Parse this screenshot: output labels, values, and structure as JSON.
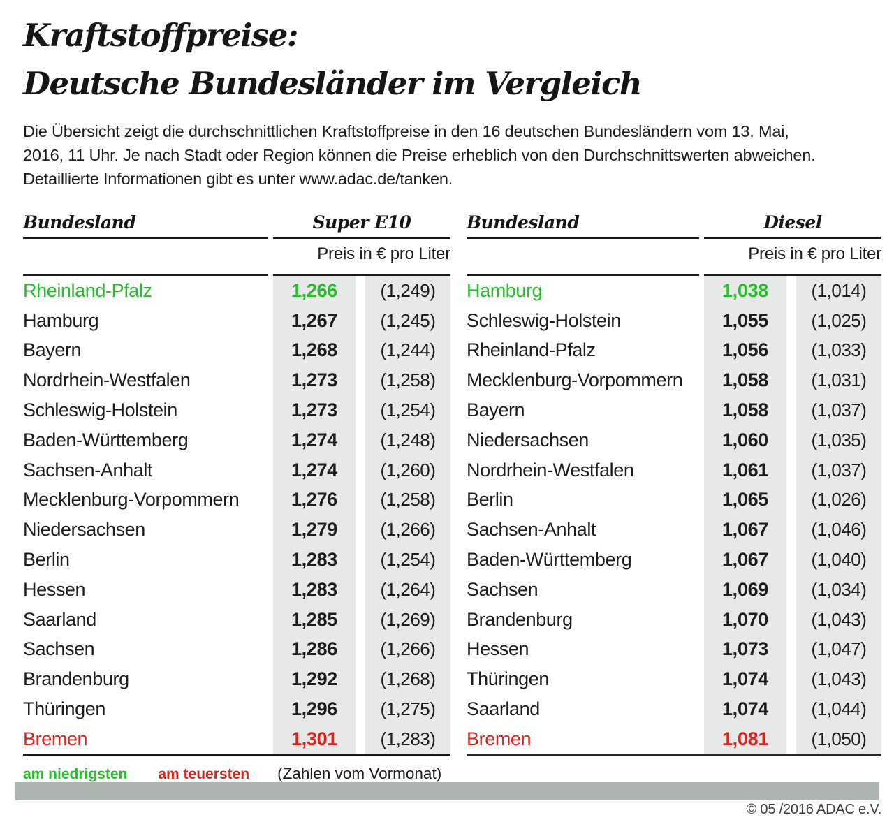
{
  "title": {
    "line1": "Kraftstoffpreise:",
    "line2": "Deutsche Bundesländer im Vergleich"
  },
  "intro_lines": [
    "Die Übersicht zeigt die durchschnittlichen Kraftstoffpreise in den 16 deutschen Bundesländern vom 13. Mai,",
    "2016, 11 Uhr. Je nach Stadt oder Region können die Preise erheblich von den Durchschnittswerten abweichen.",
    "Detaillierte Informationen gibt es unter www.adac.de/tanken."
  ],
  "colors": {
    "green": "#25bf2a",
    "red": "#d9231d",
    "colbg": "#e6e9e7",
    "bar": "#aeb4b0"
  },
  "tables": [
    {
      "name_header": "Bundesland",
      "fuel_header": "Super E10",
      "unit_header": "Preis in € pro Liter",
      "rows": [
        {
          "state": "Rheinland-Pfalz",
          "price": "1,266",
          "prev": "(1,249)",
          "highlight": "lowest"
        },
        {
          "state": "Hamburg",
          "price": "1,267",
          "prev": "(1,245)"
        },
        {
          "state": "Bayern",
          "price": "1,268",
          "prev": "(1,244)"
        },
        {
          "state": "Nordrhein-Westfalen",
          "price": "1,273",
          "prev": "(1,258)"
        },
        {
          "state": "Schleswig-Holstein",
          "price": "1,273",
          "prev": "(1,254)"
        },
        {
          "state": "Baden-Württemberg",
          "price": "1,274",
          "prev": "(1,248)"
        },
        {
          "state": "Sachsen-Anhalt",
          "price": "1,274",
          "prev": "(1,260)"
        },
        {
          "state": "Mecklenburg-Vorpommern",
          "price": "1,276",
          "prev": "(1,258)"
        },
        {
          "state": "Niedersachsen",
          "price": "1,279",
          "prev": "(1,266)"
        },
        {
          "state": "Berlin",
          "price": "1,283",
          "prev": "(1,254)"
        },
        {
          "state": "Hessen",
          "price": "1,283",
          "prev": "(1,264)"
        },
        {
          "state": "Saarland",
          "price": "1,285",
          "prev": "(1,269)"
        },
        {
          "state": "Sachsen",
          "price": "1,286",
          "prev": "(1,266)"
        },
        {
          "state": "Brandenburg",
          "price": "1,292",
          "prev": "(1,268)"
        },
        {
          "state": "Thüringen",
          "price": "1,296",
          "prev": "(1,275)"
        },
        {
          "state": "Bremen",
          "price": "1,301",
          "prev": "(1,283)",
          "highlight": "highest"
        }
      ]
    },
    {
      "name_header": "Bundesland",
      "fuel_header": "Diesel",
      "unit_header": "Preis in € pro Liter",
      "rows": [
        {
          "state": "Hamburg",
          "price": "1,038",
          "prev": "(1,014)",
          "highlight": "lowest"
        },
        {
          "state": "Schleswig-Holstein",
          "price": "1,055",
          "prev": "(1,025)"
        },
        {
          "state": "Rheinland-Pfalz",
          "price": "1,056",
          "prev": "(1,033)"
        },
        {
          "state": "Mecklenburg-Vorpommern",
          "price": "1,058",
          "prev": "(1,031)"
        },
        {
          "state": "Bayern",
          "price": "1,058",
          "prev": "(1,037)"
        },
        {
          "state": "Niedersachsen",
          "price": "1,060",
          "prev": "(1,035)"
        },
        {
          "state": "Nordrhein-Westfalen",
          "price": "1,061",
          "prev": "(1,037)"
        },
        {
          "state": "Berlin",
          "price": "1,065",
          "prev": "(1,026)"
        },
        {
          "state": "Sachsen-Anhalt",
          "price": "1,067",
          "prev": "(1,046)"
        },
        {
          "state": "Baden-Württemberg",
          "price": "1,067",
          "prev": "(1,040)"
        },
        {
          "state": "Sachsen",
          "price": "1,069",
          "prev": "(1,034)"
        },
        {
          "state": "Brandenburg",
          "price": "1,070",
          "prev": "(1,043)"
        },
        {
          "state": "Hessen",
          "price": "1,073",
          "prev": "(1,047)"
        },
        {
          "state": "Thüringen",
          "price": "1,074",
          "prev": "(1,043)"
        },
        {
          "state": "Saarland",
          "price": "1,074",
          "prev": "(1,044)"
        },
        {
          "state": "Bremen",
          "price": "1,081",
          "prev": "(1,050)",
          "highlight": "highest"
        }
      ]
    }
  ],
  "legend": {
    "lowest": "am niedrigsten",
    "highest": "am teuersten",
    "note": "(Zahlen vom Vormonat)"
  },
  "copyright": "© 05 /2016 ADAC e.V.",
  "chart_data": [
    {
      "type": "table",
      "title": "Super E10",
      "subtitle": "Preis in € pro Liter",
      "columns": [
        "Bundesland",
        "Preis in € pro Liter",
        "Zahlen vom Vormonat"
      ],
      "rows": [
        [
          "Rheinland-Pfalz",
          1.266,
          1.249
        ],
        [
          "Hamburg",
          1.267,
          1.245
        ],
        [
          "Bayern",
          1.268,
          1.244
        ],
        [
          "Nordrhein-Westfalen",
          1.273,
          1.258
        ],
        [
          "Schleswig-Holstein",
          1.273,
          1.254
        ],
        [
          "Baden-Württemberg",
          1.274,
          1.248
        ],
        [
          "Sachsen-Anhalt",
          1.274,
          1.26
        ],
        [
          "Mecklenburg-Vorpommern",
          1.276,
          1.258
        ],
        [
          "Niedersachsen",
          1.279,
          1.266
        ],
        [
          "Berlin",
          1.283,
          1.254
        ],
        [
          "Hessen",
          1.283,
          1.264
        ],
        [
          "Saarland",
          1.285,
          1.269
        ],
        [
          "Sachsen",
          1.286,
          1.266
        ],
        [
          "Brandenburg",
          1.292,
          1.268
        ],
        [
          "Thüringen",
          1.296,
          1.275
        ],
        [
          "Bremen",
          1.301,
          1.283
        ]
      ],
      "annotations": {
        "lowest_green": "Rheinland-Pfalz 1,266",
        "highest_red": "Bremen 1,301"
      }
    },
    {
      "type": "table",
      "title": "Diesel",
      "subtitle": "Preis in € pro Liter",
      "columns": [
        "Bundesland",
        "Preis in € pro Liter",
        "Zahlen vom Vormonat"
      ],
      "rows": [
        [
          "Hamburg",
          1.038,
          1.014
        ],
        [
          "Schleswig-Holstein",
          1.055,
          1.025
        ],
        [
          "Rheinland-Pfalz",
          1.056,
          1.033
        ],
        [
          "Mecklenburg-Vorpommern",
          1.058,
          1.031
        ],
        [
          "Bayern",
          1.058,
          1.037
        ],
        [
          "Niedersachsen",
          1.06,
          1.035
        ],
        [
          "Nordrhein-Westfalen",
          1.061,
          1.037
        ],
        [
          "Berlin",
          1.065,
          1.026
        ],
        [
          "Sachsen-Anhalt",
          1.067,
          1.046
        ],
        [
          "Baden-Württemberg",
          1.067,
          1.04
        ],
        [
          "Sachsen",
          1.069,
          1.034
        ],
        [
          "Brandenburg",
          1.07,
          1.043
        ],
        [
          "Hessen",
          1.073,
          1.047
        ],
        [
          "Thüringen",
          1.074,
          1.043
        ],
        [
          "Saarland",
          1.074,
          1.044
        ],
        [
          "Bremen",
          1.081,
          1.05
        ]
      ],
      "annotations": {
        "lowest_green": "Hamburg 1,038",
        "highest_red": "Bremen 1,081"
      }
    }
  ]
}
